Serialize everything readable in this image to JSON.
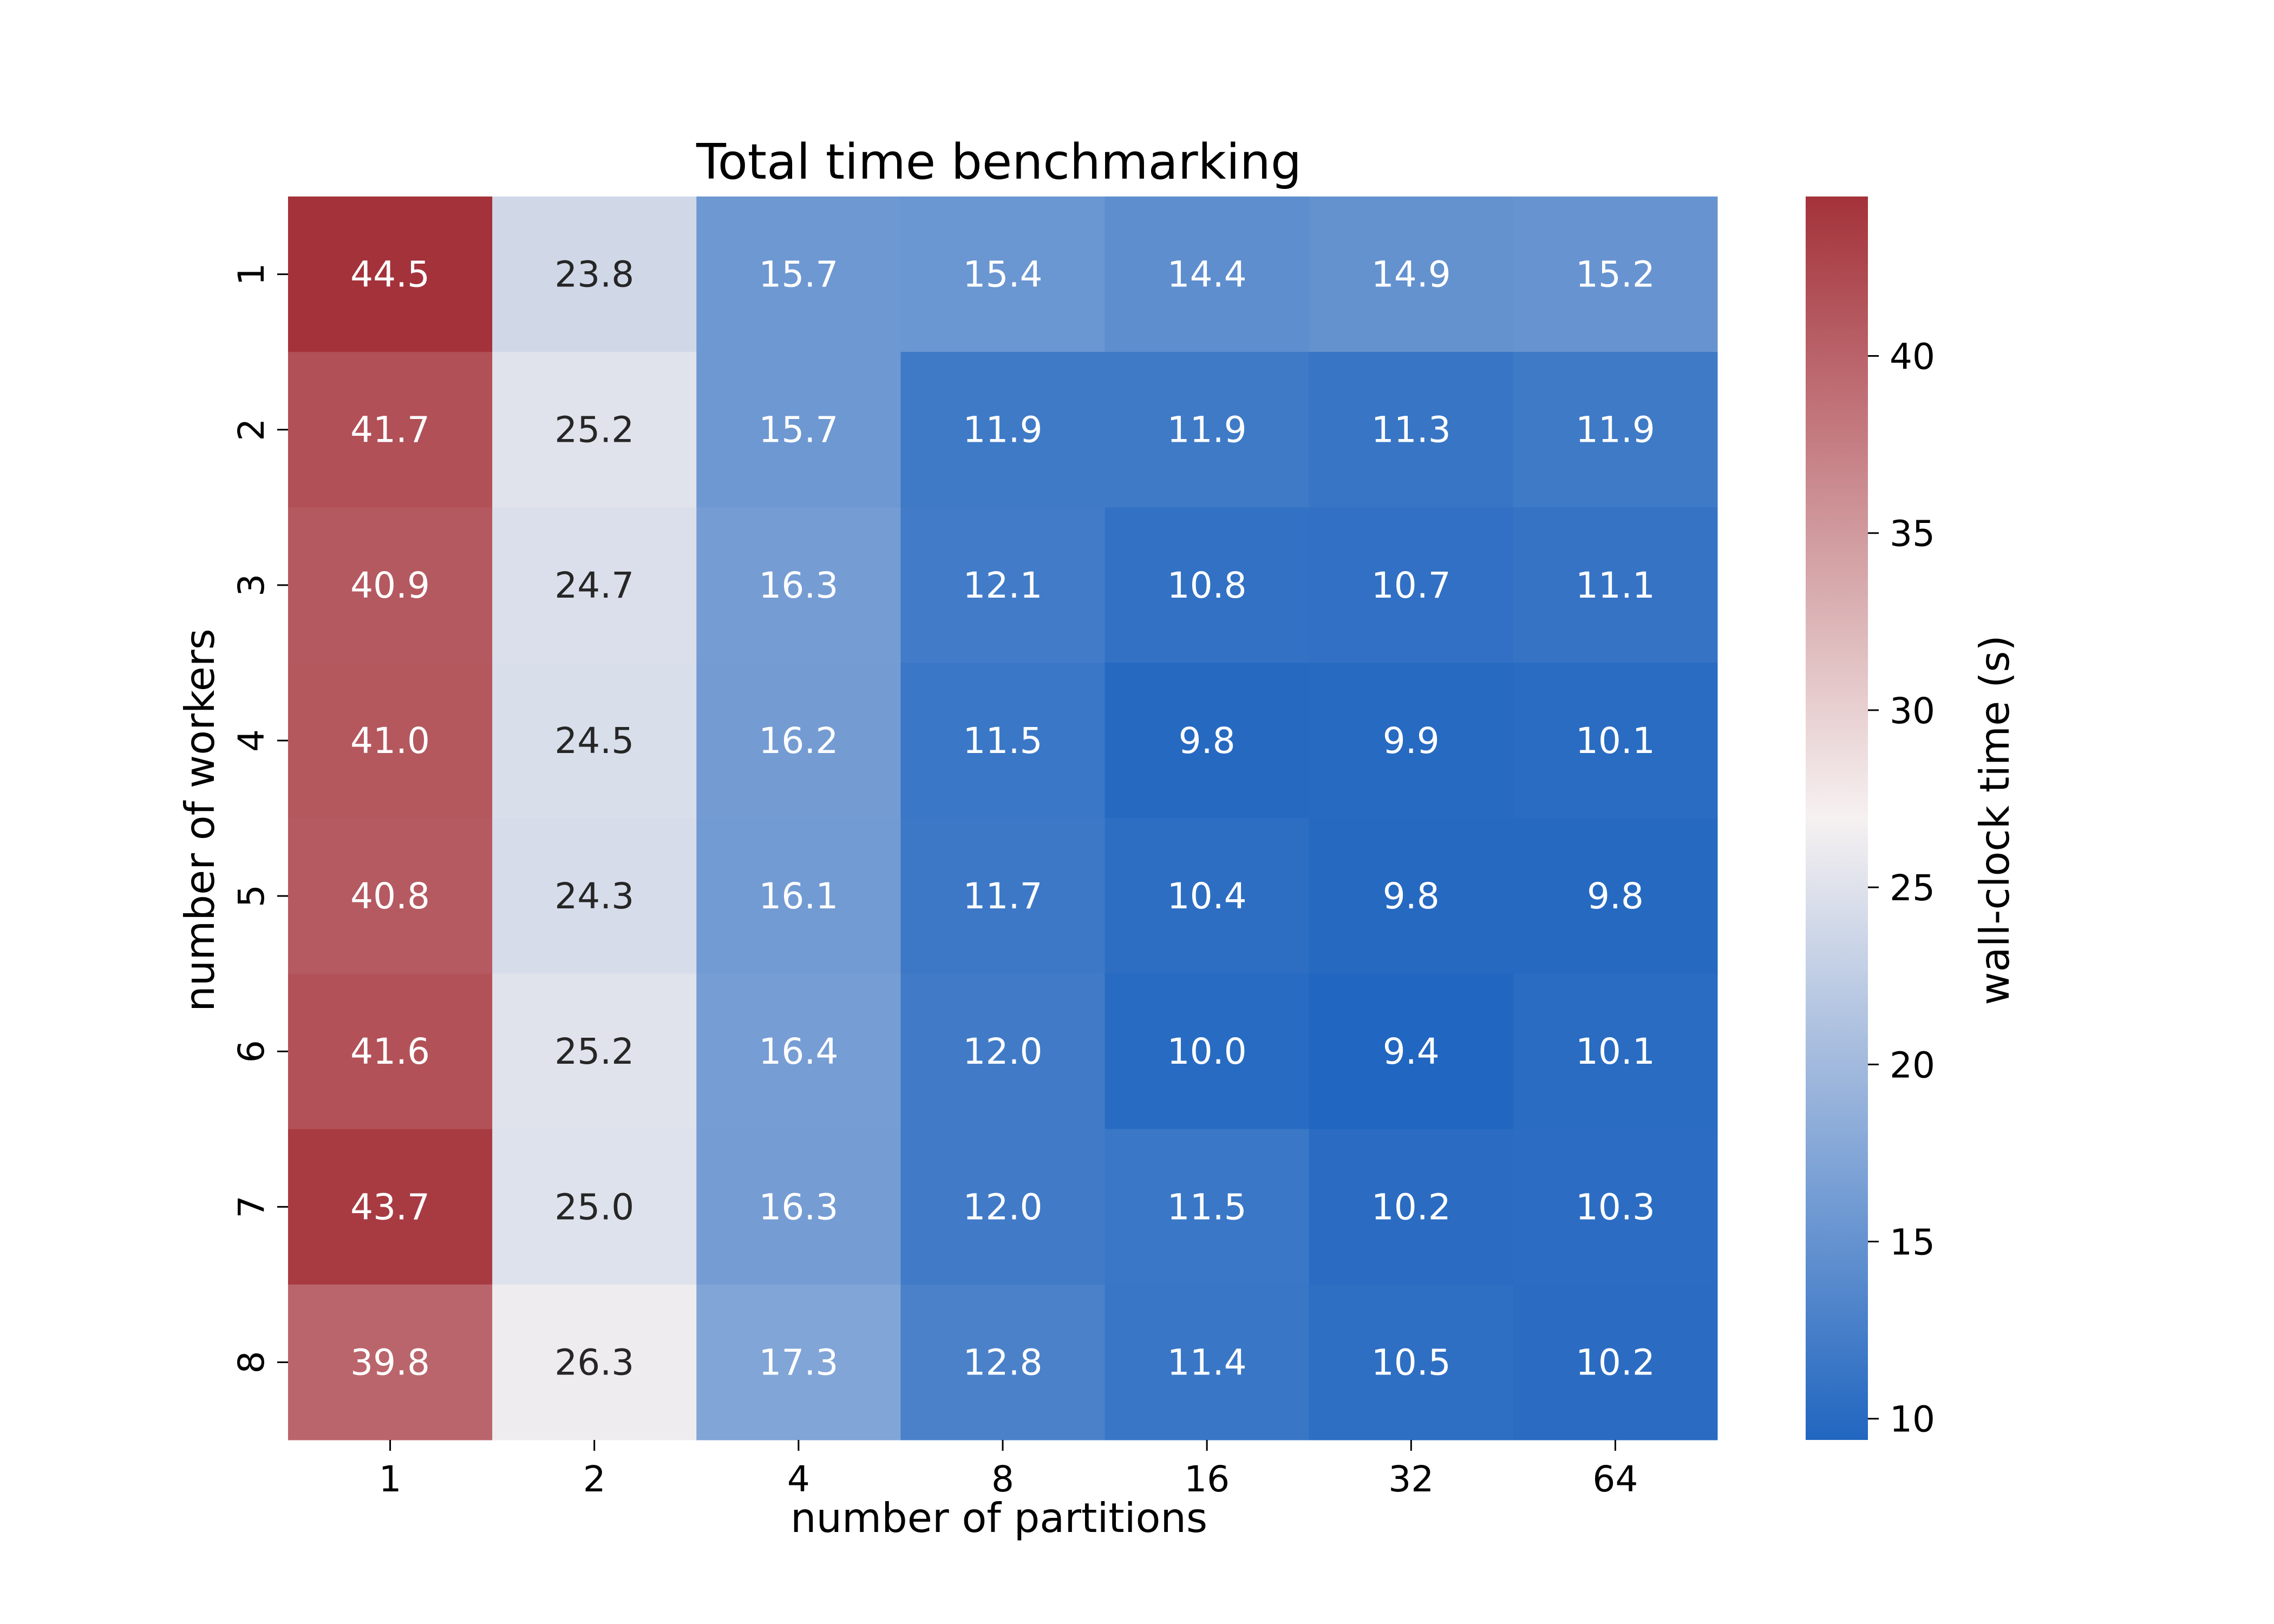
{
  "chart_data": {
    "type": "heatmap",
    "title": "Total time benchmarking",
    "xlabel": "number of partitions",
    "ylabel": "number of workers",
    "x_categories": [
      "1",
      "2",
      "4",
      "8",
      "16",
      "32",
      "64"
    ],
    "y_categories": [
      "1",
      "2",
      "3",
      "4",
      "5",
      "6",
      "7",
      "8"
    ],
    "values": [
      [
        44.5,
        23.8,
        15.7,
        15.4,
        14.4,
        14.9,
        15.2
      ],
      [
        41.7,
        25.2,
        15.7,
        11.9,
        11.9,
        11.3,
        11.9
      ],
      [
        40.9,
        24.7,
        16.3,
        12.1,
        10.8,
        10.7,
        11.1
      ],
      [
        41.0,
        24.5,
        16.2,
        11.5,
        9.8,
        9.9,
        10.1
      ],
      [
        40.8,
        24.3,
        16.1,
        11.7,
        10.4,
        9.8,
        9.8
      ],
      [
        41.6,
        25.2,
        16.4,
        12.0,
        10.0,
        9.4,
        10.1
      ],
      [
        43.7,
        25.0,
        16.3,
        12.0,
        11.5,
        10.2,
        10.3
      ],
      [
        39.8,
        26.3,
        17.3,
        12.8,
        11.4,
        10.5,
        10.2
      ]
    ],
    "colorbar": {
      "label": "wall-clock time (s)",
      "range": [
        9.4,
        44.5
      ],
      "ticks": [
        10,
        15,
        20,
        25,
        30,
        35,
        40
      ]
    },
    "colormap": {
      "low": "#2166c0",
      "mid": "#f6f1f1",
      "high": "#a4323a"
    },
    "annotation_colors": {
      "dark": "#262626",
      "light": "#ffffff"
    }
  }
}
